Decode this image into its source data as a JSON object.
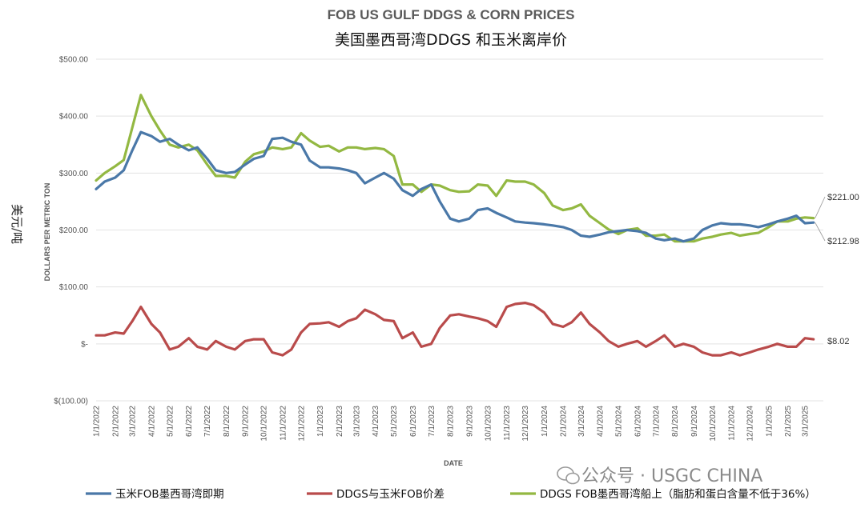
{
  "chart_data": {
    "type": "line",
    "title": "FOB US GULF DDGS & CORN PRICES",
    "subtitle": "美国墨西哥湾DDGS 和玉米离岸价",
    "xlabel": "DATE",
    "ylabel": "DOLLARS PER METRIC TON",
    "unit_label": "美元/吨",
    "ylim": [
      -100,
      500
    ],
    "yticks": [
      {
        "value": 500,
        "label": "$500.00"
      },
      {
        "value": 400,
        "label": "$400.00"
      },
      {
        "value": 300,
        "label": "$300.00"
      },
      {
        "value": 200,
        "label": "$200.00"
      },
      {
        "value": 100,
        "label": "$100.00"
      },
      {
        "value": 0,
        "label": "$-"
      },
      {
        "value": -100,
        "label": "$(100.00)"
      }
    ],
    "xticks": [
      "1/1/2022",
      "2/1/2022",
      "3/1/2022",
      "4/1/2022",
      "5/1/2022",
      "6/1/2022",
      "7/1/2022",
      "8/1/2022",
      "9/1/2022",
      "10/1/2022",
      "11/1/2022",
      "12/1/2022",
      "1/1/2023",
      "2/1/2023",
      "3/1/2023",
      "4/1/2023",
      "5/1/2023",
      "6/1/2023",
      "7/1/2023",
      "8/1/2023",
      "9/1/2023",
      "10/1/2023",
      "11/1/2023",
      "12/1/2023",
      "1/1/2024",
      "2/1/2024",
      "3/1/2024",
      "4/1/2024",
      "5/1/2024",
      "6/1/2024",
      "7/1/2024",
      "8/1/2024",
      "9/1/2024",
      "10/1/2024",
      "11/1/2024",
      "12/1/2024",
      "1/1/2025",
      "2/1/2025",
      "3/1/2025"
    ],
    "x": [
      "1/1/2022",
      "1/15/2022",
      "2/1/2022",
      "2/15/2022",
      "3/1/2022",
      "3/15/2022",
      "4/1/2022",
      "4/15/2022",
      "5/1/2022",
      "5/15/2022",
      "6/1/2022",
      "6/15/2022",
      "7/1/2022",
      "7/15/2022",
      "8/1/2022",
      "8/15/2022",
      "9/1/2022",
      "9/15/2022",
      "10/1/2022",
      "10/15/2022",
      "11/1/2022",
      "11/15/2022",
      "12/1/2022",
      "12/15/2022",
      "1/1/2023",
      "1/15/2023",
      "2/1/2023",
      "2/15/2023",
      "3/1/2023",
      "3/15/2023",
      "4/1/2023",
      "4/15/2023",
      "5/1/2023",
      "5/15/2023",
      "6/1/2023",
      "6/15/2023",
      "7/1/2023",
      "7/15/2023",
      "8/1/2023",
      "8/15/2023",
      "9/1/2023",
      "9/15/2023",
      "10/1/2023",
      "10/15/2023",
      "11/1/2023",
      "11/15/2023",
      "12/1/2023",
      "12/15/2023",
      "1/1/2024",
      "1/15/2024",
      "2/1/2024",
      "2/15/2024",
      "3/1/2024",
      "3/15/2024",
      "4/1/2024",
      "4/15/2024",
      "5/1/2024",
      "5/15/2024",
      "6/1/2024",
      "6/15/2024",
      "7/1/2024",
      "7/15/2024",
      "8/1/2024",
      "8/15/2024",
      "9/1/2024",
      "9/15/2024",
      "10/1/2024",
      "10/15/2024",
      "11/1/2024",
      "11/15/2024",
      "12/1/2024",
      "12/15/2024",
      "1/1/2025",
      "1/15/2025",
      "2/1/2025",
      "2/15/2025",
      "3/1/2025",
      "3/15/2025"
    ],
    "series": [
      {
        "name": "玉米FOB墨西哥湾即期",
        "color": "#4a78a8",
        "values": [
          272,
          285,
          292,
          305,
          340,
          372,
          365,
          355,
          360,
          350,
          340,
          345,
          325,
          305,
          300,
          302,
          315,
          325,
          330,
          360,
          362,
          355,
          350,
          322,
          310,
          310,
          308,
          305,
          300,
          282,
          292,
          300,
          290,
          270,
          260,
          272,
          280,
          250,
          220,
          215,
          220,
          235,
          238,
          230,
          222,
          215,
          213,
          212,
          210,
          208,
          205,
          200,
          190,
          188,
          192,
          196,
          198,
          200,
          198,
          195,
          185,
          182,
          185,
          180,
          185,
          200,
          208,
          212,
          210,
          210,
          208,
          205,
          210,
          215,
          220,
          225,
          212,
          213
        ]
      },
      {
        "name": "DDGS与玉米FOB价差",
        "color": "#b94b4b",
        "values": [
          15,
          15,
          20,
          18,
          40,
          65,
          35,
          20,
          -10,
          -5,
          10,
          -5,
          -10,
          5,
          -5,
          -10,
          5,
          8,
          8,
          -15,
          -20,
          -10,
          20,
          35,
          36,
          38,
          30,
          40,
          45,
          60,
          52,
          42,
          40,
          10,
          20,
          -5,
          0,
          28,
          50,
          52,
          48,
          45,
          40,
          30,
          65,
          70,
          72,
          68,
          55,
          35,
          30,
          38,
          55,
          35,
          20,
          5,
          -5,
          0,
          5,
          -5,
          5,
          15,
          -5,
          0,
          -5,
          -15,
          -20,
          -20,
          -15,
          -20,
          -15,
          -10,
          -5,
          0,
          -5,
          -5,
          10,
          8
        ]
      },
      {
        "name": "DDGS FOB墨西哥湾船上（脂肪和蛋白含量不低于36%）",
        "color": "#93b842",
        "values": [
          287,
          300,
          312,
          323,
          380,
          437,
          400,
          375,
          350,
          345,
          350,
          340,
          315,
          295,
          295,
          292,
          320,
          333,
          338,
          345,
          342,
          345,
          370,
          357,
          346,
          348,
          338,
          345,
          345,
          342,
          344,
          342,
          330,
          280,
          280,
          267,
          280,
          278,
          270,
          267,
          268,
          280,
          278,
          260,
          287,
          285,
          285,
          280,
          265,
          243,
          235,
          238,
          245,
          225,
          212,
          201,
          193,
          200,
          203,
          190,
          190,
          192,
          180,
          180,
          180,
          185,
          188,
          192,
          195,
          190,
          193,
          195,
          205,
          215,
          215,
          220,
          222,
          221
        ]
      }
    ],
    "end_labels": [
      {
        "text": "$221.00",
        "series": 2
      },
      {
        "text": "$212.98",
        "series": 0
      },
      {
        "text": "$8.02",
        "series": 1
      }
    ],
    "legend_position": "bottom",
    "grid": true
  },
  "watermark": "公众号 · USGC CHINA"
}
